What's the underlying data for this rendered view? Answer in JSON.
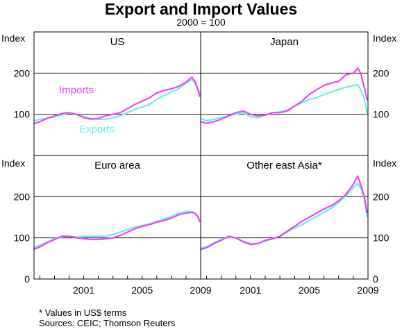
{
  "title": "Export and Import Values",
  "subtitle": "2000 = 100",
  "footnote": "*   Values in US$ terms",
  "sources": "Sources: CEIC; Thomson Reuters",
  "colors": {
    "imports": "#ee44ee",
    "exports": "#66eeee",
    "axis": "#000000"
  },
  "chart_data": {
    "type": "line",
    "axis_label": "Index",
    "ylim_top": [
      0,
      300
    ],
    "ylim_bottom": [
      0,
      300
    ],
    "xlim": [
      1997.6,
      2009.0
    ],
    "x_ticks": [
      "2001",
      "2005",
      "2009"
    ],
    "y_ticks_top": [
      "100",
      "200"
    ],
    "y_ticks_bottom": [
      "0",
      "100",
      "200"
    ],
    "panels": [
      {
        "title": "US",
        "series": [
          {
            "name": "Imports",
            "points": [
              [
                1997.6,
                77
              ],
              [
                1998,
                82
              ],
              [
                1998.5,
                90
              ],
              [
                1999,
                96
              ],
              [
                1999.5,
                102
              ],
              [
                2000,
                104
              ],
              [
                2000.5,
                100
              ],
              [
                2001,
                92
              ],
              [
                2001.5,
                88
              ],
              [
                2002,
                90
              ],
              [
                2002.5,
                96
              ],
              [
                2003,
                100
              ],
              [
                2003.5,
                104
              ],
              [
                2004,
                114
              ],
              [
                2004.5,
                124
              ],
              [
                2005,
                132
              ],
              [
                2005.5,
                140
              ],
              [
                2006,
                152
              ],
              [
                2006.5,
                158
              ],
              [
                2007,
                162
              ],
              [
                2007.5,
                168
              ],
              [
                2008,
                178
              ],
              [
                2008.4,
                190
              ],
              [
                2008.6,
                180
              ],
              [
                2008.8,
                162
              ],
              [
                2008.95,
                142
              ]
            ]
          },
          {
            "name": "Exports",
            "points": [
              [
                1997.6,
                84
              ],
              [
                1998,
                88
              ],
              [
                1998.5,
                90
              ],
              [
                1999,
                94
              ],
              [
                1999.5,
                98
              ],
              [
                2000,
                104
              ],
              [
                2000.5,
                100
              ],
              [
                2001,
                94
              ],
              [
                2001.5,
                90
              ],
              [
                2002,
                88
              ],
              [
                2002.5,
                88
              ],
              [
                2003,
                92
              ],
              [
                2003.5,
                96
              ],
              [
                2004,
                104
              ],
              [
                2004.5,
                112
              ],
              [
                2005,
                118
              ],
              [
                2005.5,
                124
              ],
              [
                2006,
                136
              ],
              [
                2006.5,
                146
              ],
              [
                2007,
                154
              ],
              [
                2007.5,
                162
              ],
              [
                2008,
                176
              ],
              [
                2008.4,
                184
              ],
              [
                2008.6,
                176
              ],
              [
                2008.8,
                162
              ],
              [
                2008.95,
                150
              ]
            ]
          }
        ],
        "labels": [
          {
            "text": "Imports",
            "series": "Imports",
            "x": 2000.5,
            "y": 151
          },
          {
            "text": "Exports",
            "series": "Exports",
            "x": 2001.9,
            "y": 56
          }
        ]
      },
      {
        "title": "Japan",
        "series": [
          {
            "name": "Imports",
            "points": [
              [
                1997.6,
                82
              ],
              [
                1998,
                78
              ],
              [
                1998.5,
                82
              ],
              [
                1999,
                88
              ],
              [
                1999.5,
                96
              ],
              [
                2000,
                104
              ],
              [
                2000.5,
                108
              ],
              [
                2001,
                100
              ],
              [
                2001.5,
                96
              ],
              [
                2002,
                98
              ],
              [
                2002.5,
                104
              ],
              [
                2003,
                104
              ],
              [
                2003.5,
                108
              ],
              [
                2004,
                120
              ],
              [
                2004.5,
                132
              ],
              [
                2005,
                148
              ],
              [
                2005.5,
                160
              ],
              [
                2006,
                170
              ],
              [
                2006.5,
                176
              ],
              [
                2007,
                180
              ],
              [
                2007.5,
                196
              ],
              [
                2008,
                200
              ],
              [
                2008.3,
                212
              ],
              [
                2008.5,
                200
              ],
              [
                2008.75,
                165
              ],
              [
                2008.95,
                134
              ]
            ]
          },
          {
            "name": "Exports",
            "points": [
              [
                1997.6,
                90
              ],
              [
                1998,
                84
              ],
              [
                1998.5,
                88
              ],
              [
                1999,
                92
              ],
              [
                1999.5,
                96
              ],
              [
                2000,
                100
              ],
              [
                2000.5,
                104
              ],
              [
                2001,
                94
              ],
              [
                2001.5,
                92
              ],
              [
                2002,
                98
              ],
              [
                2002.5,
                104
              ],
              [
                2003,
                106
              ],
              [
                2003.5,
                110
              ],
              [
                2004,
                120
              ],
              [
                2004.5,
                128
              ],
              [
                2005,
                136
              ],
              [
                2005.5,
                140
              ],
              [
                2006,
                148
              ],
              [
                2006.5,
                154
              ],
              [
                2007,
                160
              ],
              [
                2007.5,
                166
              ],
              [
                2008,
                170
              ],
              [
                2008.3,
                172
              ],
              [
                2008.5,
                160
              ],
              [
                2008.75,
                138
              ],
              [
                2008.95,
                100
              ]
            ]
          }
        ],
        "labels": []
      },
      {
        "title": "Euro area",
        "series": [
          {
            "name": "Imports",
            "points": [
              [
                1997.6,
                72
              ],
              [
                1998,
                78
              ],
              [
                1998.5,
                88
              ],
              [
                1999,
                96
              ],
              [
                1999.5,
                104
              ],
              [
                2000,
                104
              ],
              [
                2000.5,
                100
              ],
              [
                2001,
                98
              ],
              [
                2001.5,
                96
              ],
              [
                2002,
                96
              ],
              [
                2002.5,
                98
              ],
              [
                2003,
                100
              ],
              [
                2003.5,
                106
              ],
              [
                2004,
                114
              ],
              [
                2004.5,
                122
              ],
              [
                2005,
                128
              ],
              [
                2005.5,
                132
              ],
              [
                2006,
                138
              ],
              [
                2006.5,
                142
              ],
              [
                2007,
                148
              ],
              [
                2007.5,
                156
              ],
              [
                2008,
                160
              ],
              [
                2008.4,
                162
              ],
              [
                2008.6,
                160
              ],
              [
                2008.8,
                152
              ],
              [
                2008.95,
                138
              ]
            ]
          },
          {
            "name": "Exports",
            "points": [
              [
                1997.6,
                76
              ],
              [
                1998,
                82
              ],
              [
                1998.5,
                90
              ],
              [
                1999,
                98
              ],
              [
                1999.5,
                102
              ],
              [
                2000,
                104
              ],
              [
                2000.5,
                102
              ],
              [
                2001,
                104
              ],
              [
                2001.5,
                104
              ],
              [
                2002,
                104
              ],
              [
                2002.5,
                104
              ],
              [
                2003,
                108
              ],
              [
                2003.5,
                114
              ],
              [
                2004,
                120
              ],
              [
                2004.5,
                126
              ],
              [
                2005,
                130
              ],
              [
                2005.5,
                134
              ],
              [
                2006,
                140
              ],
              [
                2006.5,
                146
              ],
              [
                2007,
                152
              ],
              [
                2007.5,
                160
              ],
              [
                2008,
                164
              ],
              [
                2008.4,
                164
              ],
              [
                2008.6,
                160
              ],
              [
                2008.8,
                152
              ],
              [
                2008.95,
                140
              ]
            ]
          }
        ],
        "labels": []
      },
      {
        "title": "Other east Asia*",
        "series": [
          {
            "name": "Imports",
            "points": [
              [
                1997.6,
                72
              ],
              [
                1998,
                76
              ],
              [
                1998.5,
                86
              ],
              [
                1999,
                94
              ],
              [
                1999.5,
                104
              ],
              [
                2000,
                100
              ],
              [
                2000.5,
                90
              ],
              [
                2001,
                84
              ],
              [
                2001.5,
                86
              ],
              [
                2002,
                94
              ],
              [
                2002.5,
                98
              ],
              [
                2003,
                104
              ],
              [
                2003.5,
                116
              ],
              [
                2004,
                128
              ],
              [
                2004.5,
                140
              ],
              [
                2005,
                150
              ],
              [
                2005.5,
                160
              ],
              [
                2006,
                170
              ],
              [
                2006.5,
                178
              ],
              [
                2007,
                190
              ],
              [
                2007.5,
                206
              ],
              [
                2008,
                230
              ],
              [
                2008.3,
                250
              ],
              [
                2008.5,
                230
              ],
              [
                2008.75,
                200
              ],
              [
                2008.95,
                160
              ]
            ]
          },
          {
            "name": "Exports",
            "points": [
              [
                1997.6,
                76
              ],
              [
                1998,
                78
              ],
              [
                1998.5,
                88
              ],
              [
                1999,
                96
              ],
              [
                1999.5,
                102
              ],
              [
                2000,
                100
              ],
              [
                2000.5,
                92
              ],
              [
                2001,
                86
              ],
              [
                2001.5,
                86
              ],
              [
                2002,
                92
              ],
              [
                2002.5,
                98
              ],
              [
                2003,
                104
              ],
              [
                2003.5,
                114
              ],
              [
                2004,
                124
              ],
              [
                2004.5,
                132
              ],
              [
                2005,
                142
              ],
              [
                2005.5,
                152
              ],
              [
                2006,
                162
              ],
              [
                2006.5,
                172
              ],
              [
                2007,
                186
              ],
              [
                2007.5,
                202
              ],
              [
                2008,
                222
              ],
              [
                2008.3,
                232
              ],
              [
                2008.5,
                222
              ],
              [
                2008.75,
                196
              ],
              [
                2008.95,
                150
              ]
            ]
          }
        ],
        "labels": []
      }
    ]
  }
}
